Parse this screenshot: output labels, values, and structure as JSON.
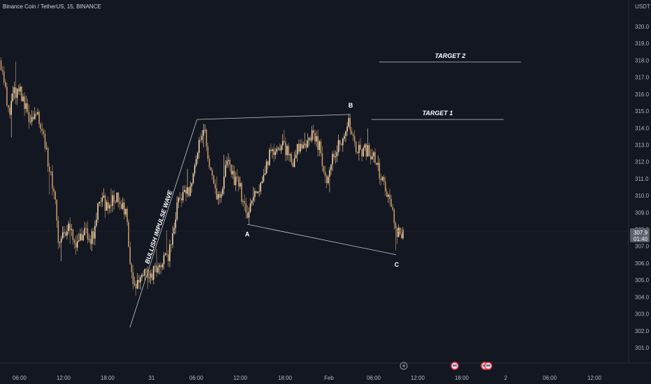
{
  "header": {
    "symbol": "Binance Coin / TetherUS, 15, BINANCE",
    "currency": "USDT"
  },
  "price_label": {
    "price": "307.9",
    "countdown": "01:40"
  },
  "colors": {
    "background": "#131722",
    "up": "#ffe0b2",
    "down": "#d1a16a",
    "drawing": "#c7c9cf",
    "tag": "#5d606b"
  },
  "icons": [
    "lightning-icon",
    "event-marker-icon",
    "event-marker-icon",
    "event-marker-icon"
  ],
  "chart_data": {
    "type": "candlestick",
    "title": "Binance Coin / TetherUS, 15, BINANCE",
    "ylabel": "USDT",
    "ylim": [
      300,
      321
    ],
    "y_ticks": [
      301.0,
      302.0,
      303.0,
      304.0,
      305.0,
      306.0,
      307.0,
      308.0,
      309.0,
      310.0,
      311.0,
      312.0,
      313.0,
      314.0,
      315.0,
      316.0,
      317.0,
      318.0,
      319.0,
      320.0
    ],
    "x_ticks": [
      "06:00",
      "12:00",
      "18:00",
      "31",
      "06:00",
      "12:00",
      "18:00",
      "Feb",
      "06:00",
      "12:00",
      "18:00",
      "2",
      "06:00",
      "12:00"
    ],
    "last_price": 307.9,
    "path": [
      [
        0,
        318.2
      ],
      [
        6,
        316.9
      ],
      [
        11,
        314.8
      ],
      [
        20,
        316.0
      ],
      [
        32,
        316.0
      ],
      [
        40,
        314.5
      ],
      [
        50,
        315.0
      ],
      [
        58,
        314.0
      ],
      [
        64,
        313.2
      ],
      [
        70,
        311.6
      ],
      [
        78,
        310.4
      ],
      [
        84,
        307.3
      ],
      [
        90,
        307.5
      ],
      [
        98,
        308.0
      ],
      [
        106,
        307.2
      ],
      [
        114,
        307.6
      ],
      [
        120,
        307.8
      ],
      [
        128,
        307.4
      ],
      [
        134,
        307.8
      ],
      [
        140,
        309.2
      ],
      [
        146,
        310.0
      ],
      [
        152,
        309.4
      ],
      [
        160,
        309.6
      ],
      [
        168,
        309.8
      ],
      [
        174,
        309.4
      ],
      [
        182,
        308.6
      ],
      [
        186,
        305.8
      ],
      [
        190,
        304.6
      ],
      [
        196,
        304.7
      ],
      [
        202,
        305.3
      ],
      [
        208,
        305.4
      ],
      [
        214,
        305.1
      ],
      [
        222,
        305.6
      ],
      [
        230,
        306.2
      ],
      [
        238,
        306.2
      ],
      [
        246,
        307.1
      ],
      [
        252,
        309.0
      ],
      [
        258,
        310.0
      ],
      [
        264,
        310.4
      ],
      [
        270,
        310.2
      ],
      [
        276,
        311.2
      ],
      [
        280,
        311.6
      ],
      [
        284,
        312.8
      ],
      [
        288,
        314.0
      ],
      [
        294,
        313.8
      ],
      [
        300,
        311.4
      ],
      [
        306,
        310.6
      ],
      [
        312,
        310.0
      ],
      [
        318,
        310.4
      ],
      [
        324,
        312.0
      ],
      [
        330,
        311.4
      ],
      [
        336,
        310.8
      ],
      [
        342,
        310.6
      ],
      [
        348,
        309.6
      ],
      [
        354,
        308.8
      ],
      [
        358,
        309.5
      ],
      [
        364,
        310.1
      ],
      [
        370,
        310.5
      ],
      [
        376,
        310.8
      ],
      [
        382,
        311.9
      ],
      [
        388,
        312.6
      ],
      [
        394,
        312.6
      ],
      [
        400,
        313.0
      ],
      [
        406,
        312.9
      ],
      [
        412,
        312.4
      ],
      [
        418,
        312.0
      ],
      [
        424,
        312.6
      ],
      [
        430,
        312.8
      ],
      [
        436,
        313.0
      ],
      [
        442,
        313.6
      ],
      [
        448,
        313.4
      ],
      [
        454,
        313.2
      ],
      [
        460,
        312.4
      ],
      [
        464,
        311.4
      ],
      [
        468,
        311.0
      ],
      [
        472,
        311.8
      ],
      [
        476,
        312.2
      ],
      [
        482,
        312.9
      ],
      [
        488,
        313.2
      ],
      [
        494,
        313.4
      ],
      [
        498,
        314.4
      ],
      [
        502,
        313.7
      ],
      [
        506,
        313.5
      ],
      [
        510,
        312.8
      ],
      [
        516,
        312.5
      ],
      [
        522,
        312.6
      ],
      [
        528,
        312.7
      ],
      [
        534,
        312.4
      ],
      [
        540,
        311.6
      ],
      [
        546,
        311.0
      ],
      [
        552,
        310.4
      ],
      [
        556,
        309.8
      ],
      [
        560,
        309.2
      ],
      [
        564,
        308.4
      ],
      [
        568,
        307.6
      ],
      [
        572,
        307.9
      ]
    ],
    "annotations": [
      {
        "label": "BULLISH  IMPULSE WAVE",
        "kind": "trend-line",
        "from": [
          186,
          302.2
        ],
        "to": [
          282,
          314.5
        ]
      },
      {
        "label": "",
        "kind": "trend-line",
        "from": [
          282,
          314.5
        ],
        "to": [
          502,
          314.8
        ]
      },
      {
        "label": "",
        "kind": "trend-line",
        "from": [
          354,
          308.3
        ],
        "to": [
          567,
          306.5
        ]
      },
      {
        "label": "A",
        "kind": "point-label",
        "at": [
          354,
          308.3
        ]
      },
      {
        "label": "B",
        "kind": "point-label",
        "at": [
          502,
          314.8
        ]
      },
      {
        "label": "C",
        "kind": "point-label",
        "at": [
          567,
          306.5
        ]
      },
      {
        "label": "TARGET 1",
        "kind": "horizontal-level",
        "value": 314.5
      },
      {
        "label": "TARGET 2",
        "kind": "horizontal-level",
        "value": 317.9
      }
    ]
  }
}
